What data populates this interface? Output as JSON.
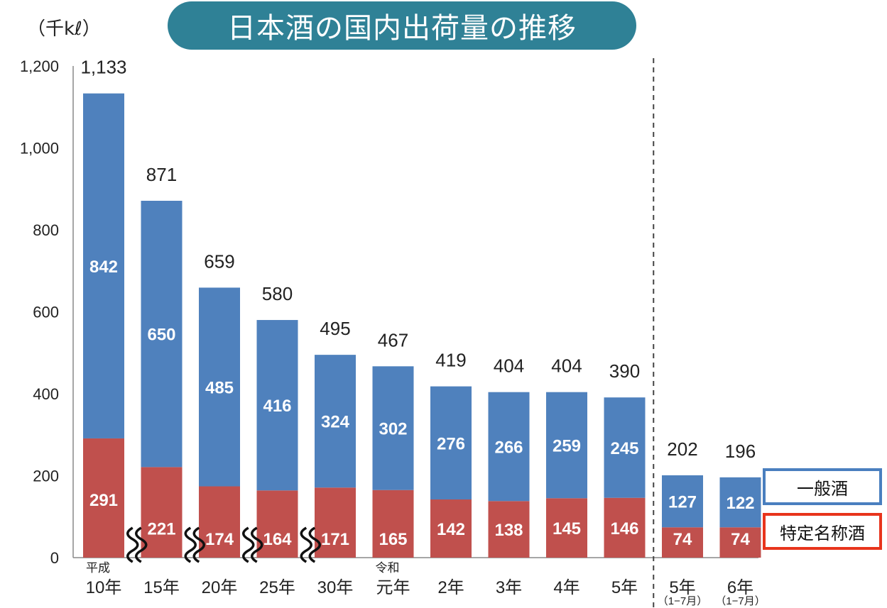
{
  "chart_data": {
    "type": "bar",
    "stacked": true,
    "title": "日本酒の国内出荷量の推移",
    "ylabel": "（千kℓ）",
    "ylim": [
      0,
      1200
    ],
    "yticks": [
      "0",
      "200",
      "400",
      "600",
      "800",
      "1,000",
      "1,200"
    ],
    "era_labels": [
      {
        "label": "平成",
        "category_index": 0
      },
      {
        "label": "令和",
        "category_index": 5
      }
    ],
    "categories": [
      "10年",
      "15年",
      "20年",
      "25年",
      "30年",
      "元年",
      "2年",
      "3年",
      "4年",
      "5年",
      "5年",
      "6年"
    ],
    "period_notes": [
      "",
      "",
      "",
      "",
      "",
      "",
      "",
      "",
      "",
      "",
      "（1−7月）",
      "（1−7月）"
    ],
    "series": [
      {
        "name": "特定名称酒",
        "color": "#c0504d",
        "values": [
          291,
          221,
          174,
          164,
          171,
          165,
          142,
          138,
          145,
          146,
          74,
          74
        ]
      },
      {
        "name": "一般酒",
        "color": "#4f81bd",
        "values": [
          842,
          650,
          485,
          416,
          324,
          302,
          276,
          266,
          259,
          245,
          127,
          122
        ]
      }
    ],
    "totals": [
      "1,133",
      "871",
      "659",
      "580",
      "495",
      "467",
      "419",
      "404",
      "404",
      "390",
      "202",
      "196"
    ],
    "axis_break_after_indices": [
      0,
      1,
      2,
      3
    ],
    "separator_after_index": 9,
    "legend": [
      "一般酒",
      "特定名称酒"
    ]
  },
  "colors": {
    "general": "#4f81bd",
    "special": "#c0504d",
    "title_bg": "#2f8196",
    "legend_general_border": "#4a7fbf",
    "legend_special_border": "#e8341c"
  }
}
